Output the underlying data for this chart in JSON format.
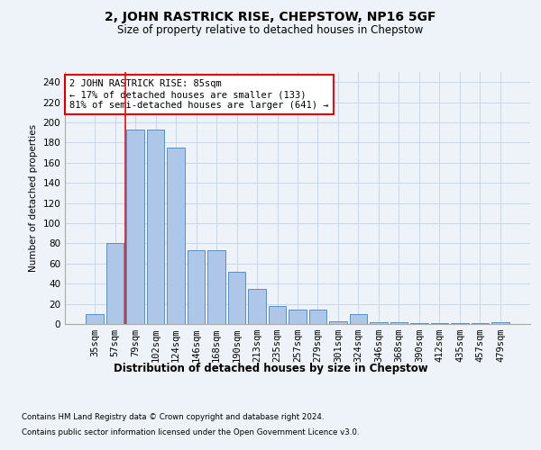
{
  "title": "2, JOHN RASTRICK RISE, CHEPSTOW, NP16 5GF",
  "subtitle": "Size of property relative to detached houses in Chepstow",
  "xlabel": "Distribution of detached houses by size in Chepstow",
  "ylabel": "Number of detached properties",
  "categories": [
    "35sqm",
    "57sqm",
    "79sqm",
    "102sqm",
    "124sqm",
    "146sqm",
    "168sqm",
    "190sqm",
    "213sqm",
    "235sqm",
    "257sqm",
    "279sqm",
    "301sqm",
    "324sqm",
    "346sqm",
    "368sqm",
    "390sqm",
    "412sqm",
    "435sqm",
    "457sqm",
    "479sqm"
  ],
  "values": [
    10,
    80,
    193,
    193,
    175,
    73,
    73,
    52,
    35,
    18,
    14,
    14,
    3,
    10,
    2,
    2,
    1,
    1,
    1,
    1,
    2
  ],
  "bar_color": "#aec6e8",
  "bar_edge_color": "#5a8fc0",
  "grid_color": "#c8d8e8",
  "background_color": "#edf3f8",
  "annotation_text": "2 JOHN RASTRICK RISE: 85sqm\n← 17% of detached houses are smaller (133)\n81% of semi-detached houses are larger (641) →",
  "annotation_box_color": "#ffffff",
  "annotation_box_edge": "#cc0000",
  "footer_line1": "Contains HM Land Registry data © Crown copyright and database right 2024.",
  "footer_line2": "Contains public sector information licensed under the Open Government Licence v3.0.",
  "ylim": [
    0,
    250
  ],
  "yticks": [
    0,
    20,
    40,
    60,
    80,
    100,
    120,
    140,
    160,
    180,
    200,
    220,
    240
  ],
  "red_line_idx": 2
}
